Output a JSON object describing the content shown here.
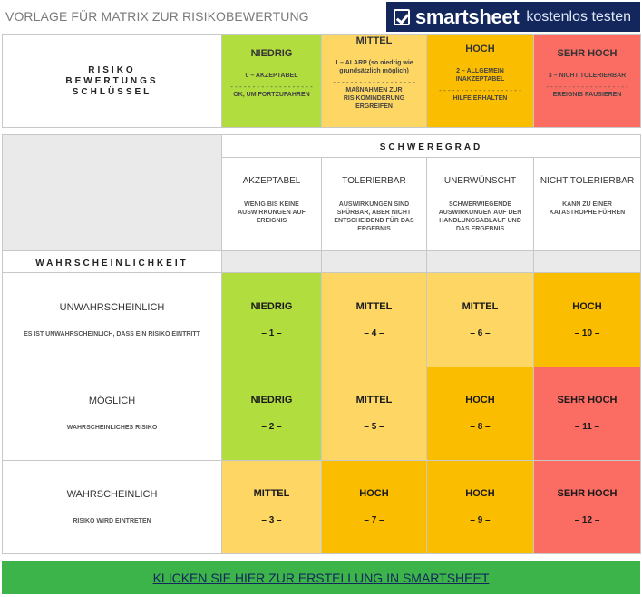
{
  "title": "VORLAGE FÜR MATRIX ZUR RISIKOBEWERTUNG",
  "brand": {
    "name": "smartsheet",
    "cta": "kostenlos testen",
    "logo_icon": "smartsheet-check-icon"
  },
  "legend": {
    "key_label_1": "RISIKO",
    "key_label_2": "BEWERTUNGS",
    "key_label_3": "SCHLÜSSEL",
    "levels": [
      {
        "heading": "NIEDRIG",
        "desc": "0 – AKZEPTABEL",
        "dash": "- - - - - - - - - - - - - - - - - - -",
        "action": "OK, UM FORTZUFAHREN",
        "color": "#b2dd3e"
      },
      {
        "heading": "MITTEL",
        "desc": "1 – ALARP (so niedrig wie grundsätzlich möglich)",
        "dash": "- - - - - - - - - - - - - - - - - - -",
        "action": "MAßNAHMEN ZUR RISIKOMINDERUNG ERGREIFEN",
        "color": "#fdd664"
      },
      {
        "heading": "HOCH",
        "desc": "2 – ALLGEMEIN INAKZEPTABEL",
        "dash": "- - - - - - - - - - - - - - - - - - -",
        "action": "HILFE ERHALTEN",
        "color": "#fbbd00"
      },
      {
        "heading": "SEHR HOCH",
        "desc": "3 – NICHT TOLERIERBAR",
        "dash": "- - - - - - - - - - - - - - - - - - -",
        "action": "EREIGNIS PAUSIEREN",
        "color": "#fb6c62"
      }
    ]
  },
  "matrix": {
    "severity_title": "SCHWEREGRAD",
    "severity": [
      {
        "heading": "AKZEPTABEL",
        "desc": "WENIG BIS KEINE AUSWIRKUNGEN AUF EREIGNIS"
      },
      {
        "heading": "TOLERIERBAR",
        "desc": "AUSWIRKUNGEN SIND SPÜRBAR, ABER NICHT ENTSCHEIDEND FÜR DAS ERGEBNIS"
      },
      {
        "heading": "UNERWÜNSCHT",
        "desc": "SCHWERWIEGENDE AUSWIRKUNGEN AUF DEN HANDLUNGSABLAUF UND DAS ERGEBNIS"
      },
      {
        "heading": "NICHT TOLERIERBAR",
        "desc": "KANN ZU EINER KATASTROPHE FÜHREN"
      }
    ],
    "likelihood_title": "WAHRSCHEINLICHKEIT",
    "rows": [
      {
        "heading": "UNWAHRSCHEINLICH",
        "desc": "ES IST UNWAHRSCHEINLICH, DASS EIN RISIKO EINTRITT",
        "cells": [
          {
            "level": "NIEDRIG",
            "num": "– 1 –"
          },
          {
            "level": "MITTEL",
            "num": "– 4 –"
          },
          {
            "level": "MITTEL",
            "num": "– 6 –"
          },
          {
            "level": "HOCH",
            "num": "– 10 –"
          }
        ]
      },
      {
        "heading": "MÖGLICH",
        "desc": "WAHRSCHEINLICHES RISIKO",
        "cells": [
          {
            "level": "NIEDRIG",
            "num": "– 2 –"
          },
          {
            "level": "MITTEL",
            "num": "– 5 –"
          },
          {
            "level": "HOCH",
            "num": "– 8 –"
          },
          {
            "level": "SEHR HOCH",
            "num": "– 11 –"
          }
        ]
      },
      {
        "heading": "WAHRSCHEINLICH",
        "desc": "RISIKO WIRD EINTRETEN",
        "cells": [
          {
            "level": "MITTEL",
            "num": "– 3 –"
          },
          {
            "level": "HOCH",
            "num": "– 7 –"
          },
          {
            "level": "HOCH",
            "num": "– 9 –"
          },
          {
            "level": "SEHR HOCH",
            "num": "– 12 –"
          }
        ]
      }
    ]
  },
  "cta_link": "KLICKEN SIE HIER ZUR ERSTELLUNG IN SMARTSHEET"
}
